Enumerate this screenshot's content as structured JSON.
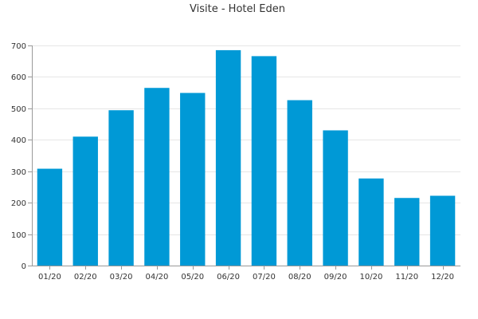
{
  "chart_data": {
    "type": "bar",
    "title": "Visite - Hotel Eden",
    "xlabel": "",
    "ylabel": "",
    "categories": [
      "01/20",
      "02/20",
      "03/20",
      "04/20",
      "05/20",
      "06/20",
      "07/20",
      "08/20",
      "09/20",
      "10/20",
      "11/20",
      "12/20"
    ],
    "values": [
      308,
      410,
      494,
      565,
      549,
      685,
      666,
      526,
      430,
      277,
      215,
      222
    ],
    "ylim": [
      0,
      700
    ],
    "yticks": [
      0,
      100,
      200,
      300,
      400,
      500,
      600,
      700
    ],
    "grid": true,
    "legend": "none",
    "colors": {
      "bar": "#0099d6",
      "grid": "#e6e6e6",
      "axis": "#999999",
      "text": "#333333"
    }
  }
}
